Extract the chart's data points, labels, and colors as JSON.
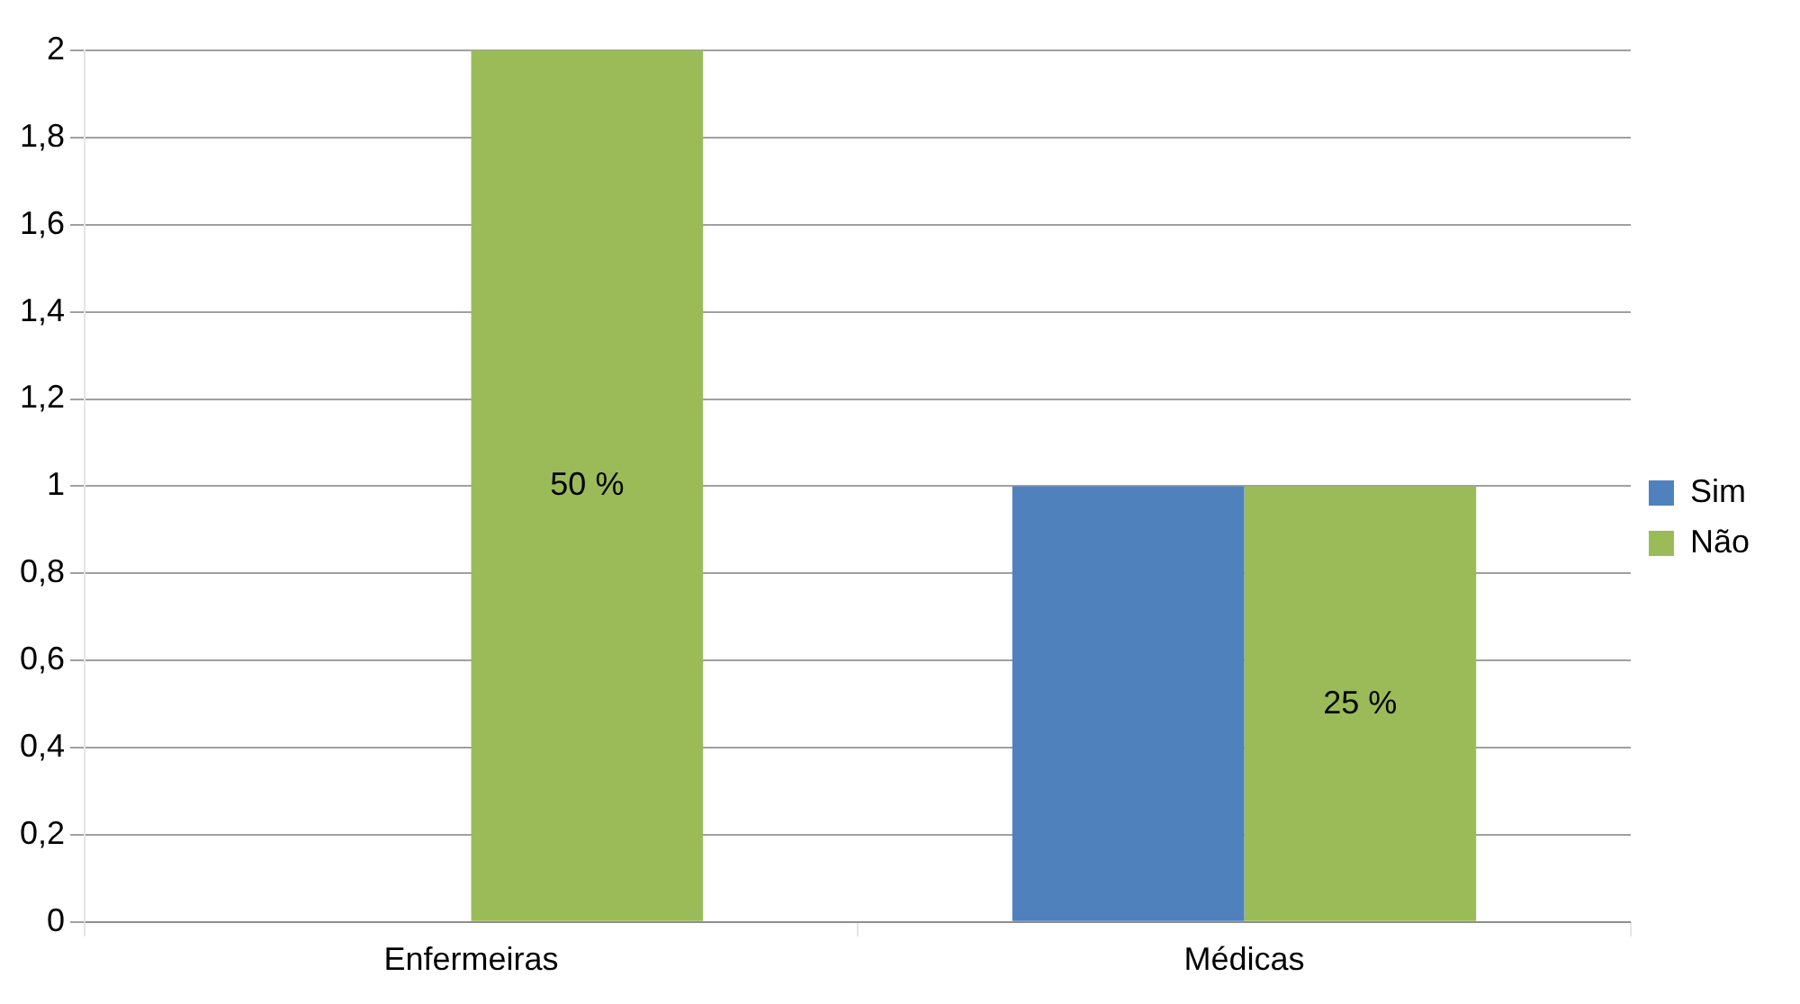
{
  "chart_data": {
    "type": "bar",
    "categories": [
      "Enfermeiras",
      "Médicas"
    ],
    "series": [
      {
        "name": "Sim",
        "color": "#4f81bd",
        "values": [
          0,
          1
        ]
      },
      {
        "name": "Não",
        "color": "#9bbb59",
        "values": [
          2,
          1
        ]
      }
    ],
    "annotations": [
      {
        "text": "50 %",
        "x": "Enfermeiras",
        "y": 1
      },
      {
        "text": "25 %",
        "x": "Médicas",
        "y": 0.5
      }
    ],
    "ylim": [
      0,
      2
    ],
    "yticks": [
      0,
      {
        "value": 0.2,
        "label": "0,2"
      },
      {
        "value": 0.4,
        "label": "0,4"
      },
      {
        "value": 0.6,
        "label": "0,6"
      },
      {
        "value": 0.8,
        "label": "0,8"
      },
      1,
      {
        "value": 1.2,
        "label": "1,2"
      },
      {
        "value": 1.4,
        "label": "1,4"
      },
      {
        "value": 1.6,
        "label": "1,6"
      },
      {
        "value": 1.8,
        "label": "1,8"
      },
      2
    ],
    "grid": true,
    "legend": "right"
  }
}
